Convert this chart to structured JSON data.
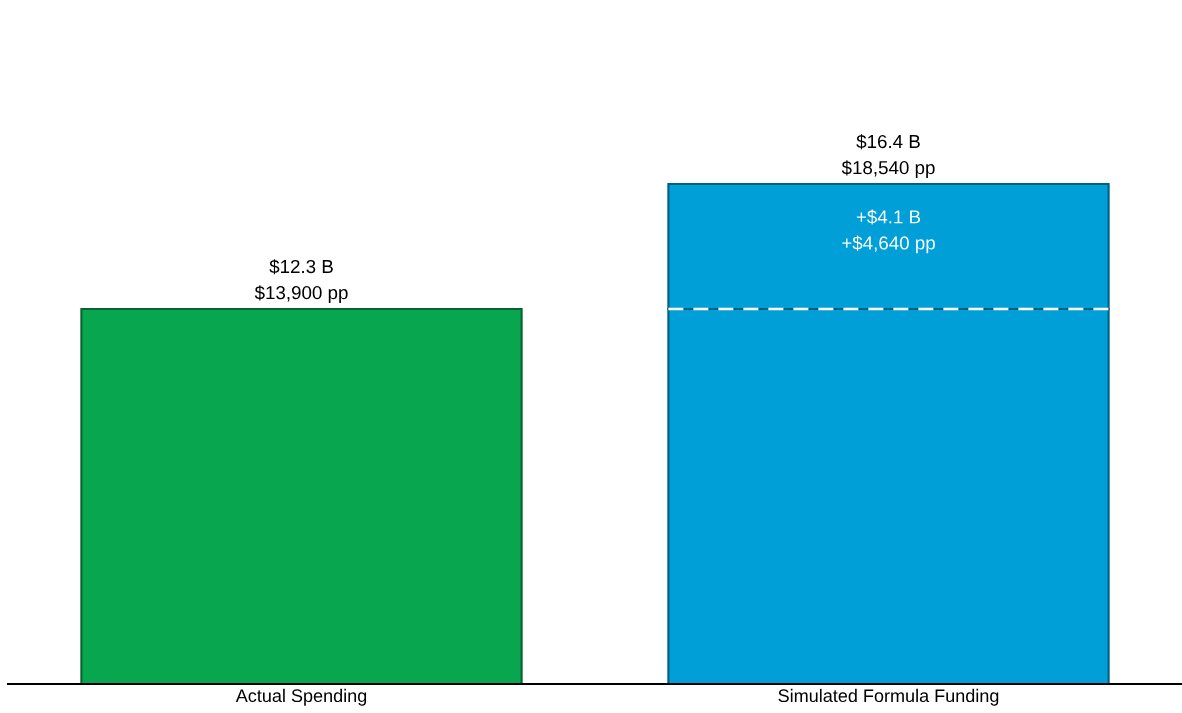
{
  "chart_data": {
    "type": "bar",
    "stacked": true,
    "categories": [
      "Actual Spending",
      "Simulated Formula Funding"
    ],
    "series": [
      {
        "colors": [
          "#08a64e",
          "#009fd8"
        ],
        "values": [
          12.3,
          12.3
        ]
      },
      {
        "color": "#009fd8",
        "values": [
          null,
          4.1
        ],
        "value_labels": [
          null,
          "+$4.1 B\n+$4,640 pp"
        ]
      }
    ],
    "totals": [
      "$12.3 B\n$13,900 pp",
      "$16.4 B\n$18,540 pp"
    ],
    "ref_lines": [
      {
        "axis": "y",
        "value": 12.3,
        "color": "#ffffff",
        "line_style": "dashed"
      }
    ],
    "grid": false,
    "legend": false,
    "tick_labels": "x"
  }
}
